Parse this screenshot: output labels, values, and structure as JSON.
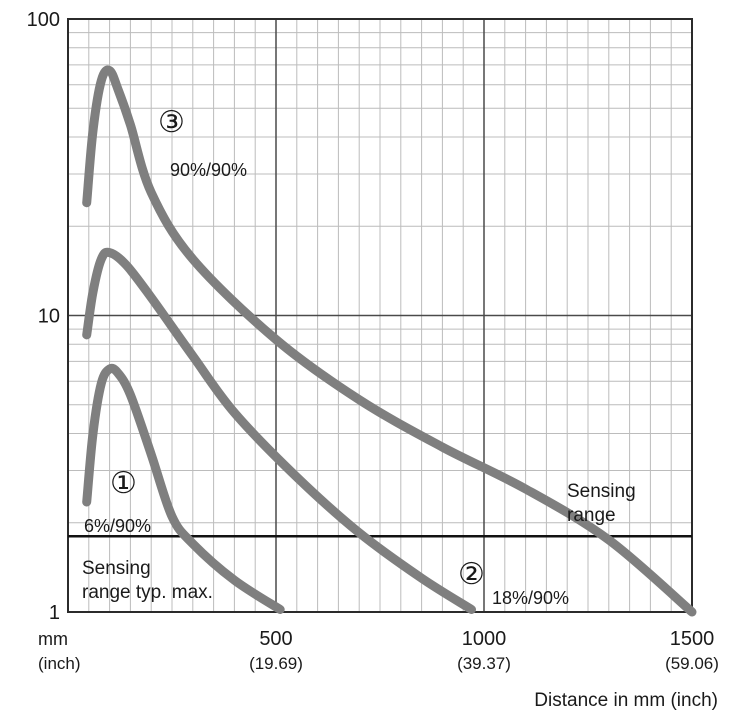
{
  "chart_data": {
    "type": "line",
    "title": "",
    "xlabel": "Distance in mm (inch)",
    "ylabel": "",
    "x_unit_label": "mm",
    "x_unit_sub_label": "(inch)",
    "xlim": [
      0,
      1500
    ],
    "ylim": [
      1,
      100
    ],
    "y_scale": "log",
    "grid": true,
    "x_ticks": [
      {
        "value": 500,
        "label": "500",
        "sub": "(19.69)"
      },
      {
        "value": 1000,
        "label": "1000",
        "sub": "(39.37)"
      },
      {
        "value": 1500,
        "label": "1500",
        "sub": "(59.06)"
      }
    ],
    "y_ticks": [
      {
        "value": 1,
        "label": "1"
      },
      {
        "value": 10,
        "label": "10"
      },
      {
        "value": 100,
        "label": "100"
      }
    ],
    "reference_line": {
      "y": 1.8
    },
    "series": [
      {
        "name": "6%/90%",
        "marker": "①",
        "points": [
          [
            45,
            2.35
          ],
          [
            60,
            4.0
          ],
          [
            80,
            5.9
          ],
          [
            100,
            6.6
          ],
          [
            120,
            6.4
          ],
          [
            150,
            5.4
          ],
          [
            200,
            3.4
          ],
          [
            250,
            2.1
          ],
          [
            300,
            1.7
          ],
          [
            400,
            1.28
          ],
          [
            510,
            1.02
          ]
        ]
      },
      {
        "name": "18%/90%",
        "marker": "②",
        "points": [
          [
            45,
            8.6
          ],
          [
            60,
            12.0
          ],
          [
            80,
            15.5
          ],
          [
            100,
            16.3
          ],
          [
            140,
            14.8
          ],
          [
            200,
            11.5
          ],
          [
            300,
            7.3
          ],
          [
            400,
            4.7
          ],
          [
            550,
            2.85
          ],
          [
            700,
            1.85
          ],
          [
            850,
            1.3
          ],
          [
            970,
            1.02
          ]
        ]
      },
      {
        "name": "90%/90%",
        "marker": "③",
        "points": [
          [
            45,
            24
          ],
          [
            60,
            42
          ],
          [
            80,
            62
          ],
          [
            100,
            67
          ],
          [
            120,
            58
          ],
          [
            150,
            44
          ],
          [
            200,
            26
          ],
          [
            300,
            15.5
          ],
          [
            500,
            8.3
          ],
          [
            700,
            5.2
          ],
          [
            900,
            3.6
          ],
          [
            1100,
            2.6
          ],
          [
            1300,
            1.75
          ],
          [
            1500,
            1.0
          ]
        ]
      }
    ],
    "annotations": [
      {
        "id": "range-typ-max",
        "lines": [
          "Sensing",
          "range typ. max."
        ]
      },
      {
        "id": "sensing-range",
        "lines": [
          "Sensing",
          "range"
        ]
      }
    ],
    "colors": {
      "series": "#7f7f7f",
      "grid_minor": "#bcbcbc",
      "grid_major": "#4a4a4a",
      "frame": "#2b2b2b",
      "reference": "#111111"
    }
  }
}
